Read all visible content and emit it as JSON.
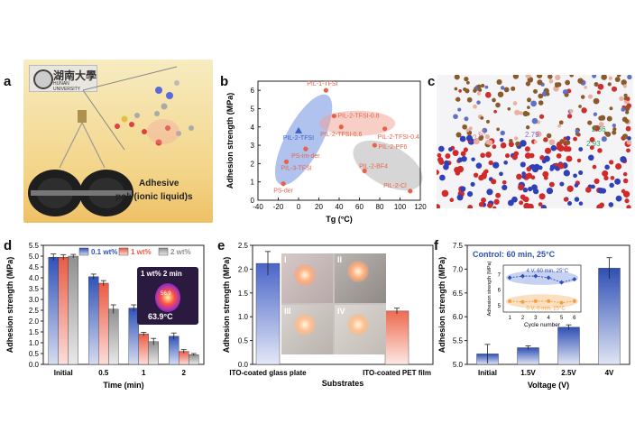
{
  "panels": {
    "a": {
      "letter": "a",
      "logo_text": "湖南大學",
      "logo_sub": "HUNAN UNIVERSITY",
      "caption_line1": "Adhesive",
      "caption_line2": "poly(ionic liquid)s",
      "colors": {
        "bg_top": "#f6e9b4",
        "bg_bottom": "#f2c86a"
      }
    },
    "b": {
      "letter": "b"
    },
    "c": {
      "letter": "c",
      "distances": [
        "2.67",
        "2.79",
        "2.36",
        "2.93"
      ]
    },
    "d": {
      "letter": "d",
      "inset_line1": "1 wt% 2 min",
      "inset_value": "56.9",
      "inset_temp": "63.9°C"
    },
    "e": {
      "letter": "e",
      "photo_labels": [
        "I",
        "II",
        "III",
        "IV"
      ]
    },
    "f": {
      "letter": "f"
    }
  },
  "chart_data": [
    {
      "id": "b",
      "type": "scatter",
      "xlabel": "Tg (°C)",
      "ylabel": "Adhesion strength (MPa)",
      "xlim": [
        -40,
        120
      ],
      "ylim": [
        0,
        6.5
      ],
      "xticks": [
        "-40",
        "-20",
        "0",
        "20",
        "40",
        "60",
        "80",
        "100",
        "120"
      ],
      "yticks": [
        "0",
        "1",
        "2",
        "3",
        "4",
        "5",
        "6"
      ],
      "points": [
        {
          "label": "PIL-1-TFSI",
          "x": 27,
          "y": 6.0,
          "color": "#e8624a",
          "marker": "circle"
        },
        {
          "label": "PIL-2-TFSI",
          "x": 0,
          "y": 3.8,
          "color": "#3a62c8",
          "marker": "triangle"
        },
        {
          "label": "PS-im-der",
          "x": 7,
          "y": 2.8,
          "color": "#e8624a",
          "marker": "circle"
        },
        {
          "label": "PIL-3-TFSI",
          "x": -12,
          "y": 2.1,
          "color": "#e8624a",
          "marker": "circle"
        },
        {
          "label": "PS-der",
          "x": -15,
          "y": 0.9,
          "color": "#e8624a",
          "marker": "circle"
        },
        {
          "label": "PIL-2-TFSI-0.8",
          "x": 35,
          "y": 4.6,
          "color": "#e8624a",
          "marker": "circle"
        },
        {
          "label": "PIL-2-TFSI-0.6",
          "x": 42,
          "y": 4.0,
          "color": "#e8624a",
          "marker": "circle"
        },
        {
          "label": "PIL-2-TFSI-0.4",
          "x": 85,
          "y": 3.9,
          "color": "#e8624a",
          "marker": "circle"
        },
        {
          "label": "PIL-2-PF6",
          "x": 75,
          "y": 3.0,
          "color": "#e8624a",
          "marker": "circle"
        },
        {
          "label": "PIL-2-BF4",
          "x": 65,
          "y": 1.6,
          "color": "#e8624a",
          "marker": "circle"
        },
        {
          "label": "PIL-2-Cl",
          "x": 110,
          "y": 0.5,
          "color": "#e8624a",
          "marker": "circle"
        }
      ]
    },
    {
      "id": "d",
      "type": "bar",
      "categories": [
        "Initial",
        "0.5",
        "1",
        "2"
      ],
      "xlabel": "Time (min)",
      "ylabel": "Adhesion strength (MPa)",
      "ylim": [
        0,
        5.5
      ],
      "yticks": [
        "0.0",
        "0.5",
        "1.0",
        "1.5",
        "2.0",
        "2.5",
        "3.0",
        "3.5",
        "4.0",
        "4.5",
        "5.0",
        "5.5"
      ],
      "legend_position": "top-right",
      "series": [
        {
          "name": "0.1 wt%",
          "color": "#2f52b8",
          "values": [
            4.95,
            4.05,
            2.6,
            1.3
          ],
          "errors": [
            0.15,
            0.12,
            0.15,
            0.15
          ]
        },
        {
          "name": "1 wt%",
          "color": "#ea5a44",
          "values": [
            4.95,
            3.75,
            1.4,
            0.6
          ],
          "errors": [
            0.12,
            0.12,
            0.08,
            0.08
          ]
        },
        {
          "name": "2 wt%",
          "color": "#8f8f8f",
          "values": [
            5.0,
            2.55,
            1.05,
            0.45
          ],
          "errors": [
            0.08,
            0.2,
            0.15,
            0.05
          ]
        }
      ]
    },
    {
      "id": "e",
      "type": "bar",
      "categories": [
        "ITO-coated glass plate",
        "ITO-coated PET film"
      ],
      "xlabel": "Substrates",
      "ylabel": "Adhesion strength (MPa)",
      "ylim": [
        0,
        2.5
      ],
      "yticks": [
        "0.0",
        "0.5",
        "1.0",
        "1.5",
        "2.0",
        "2.5"
      ],
      "series": [
        {
          "colors": [
            "#4a65c8",
            "#ee6a50"
          ],
          "values": [
            2.12,
            1.12
          ],
          "errors": [
            0.25,
            0.06
          ]
        }
      ]
    },
    {
      "id": "f",
      "type": "bar",
      "title": "Control: 60 min, 25°C",
      "categories": [
        "Initial",
        "1.5V",
        "2.5V",
        "4V"
      ],
      "xlabel": "Voltage (V)",
      "ylabel": "Adhesion strength (MPa)",
      "ylim": [
        5.0,
        7.5
      ],
      "yticks": [
        "5.0",
        "5.5",
        "6.0",
        "6.5",
        "7.0",
        "7.5"
      ],
      "series": [
        {
          "color": "#2f4fb5",
          "values": [
            5.22,
            5.35,
            5.78,
            7.02
          ],
          "errors": [
            0.2,
            0.04,
            0.05,
            0.22
          ]
        }
      ],
      "inset": {
        "type": "line",
        "xlabel": "Cycle number",
        "ylabel": "Adhesion strength (MPa)",
        "x": [
          1,
          2,
          3,
          4,
          5,
          6
        ],
        "xticks": [
          "1",
          "2",
          "3",
          "4",
          "5",
          "6"
        ],
        "yticks": [
          "5",
          "6",
          "7"
        ],
        "ylim": [
          4.6,
          7.6
        ],
        "series": [
          {
            "name": "4 V, 60 min, 25°C",
            "color": "#2f4fb5",
            "values": [
              6.8,
              6.9,
              6.9,
              6.8,
              6.5,
              6.7
            ]
          },
          {
            "name": "0 V, 0 min, 25°C",
            "color": "#f0a040",
            "values": [
              5.3,
              5.25,
              5.3,
              5.3,
              5.2,
              5.3
            ]
          }
        ]
      }
    }
  ]
}
